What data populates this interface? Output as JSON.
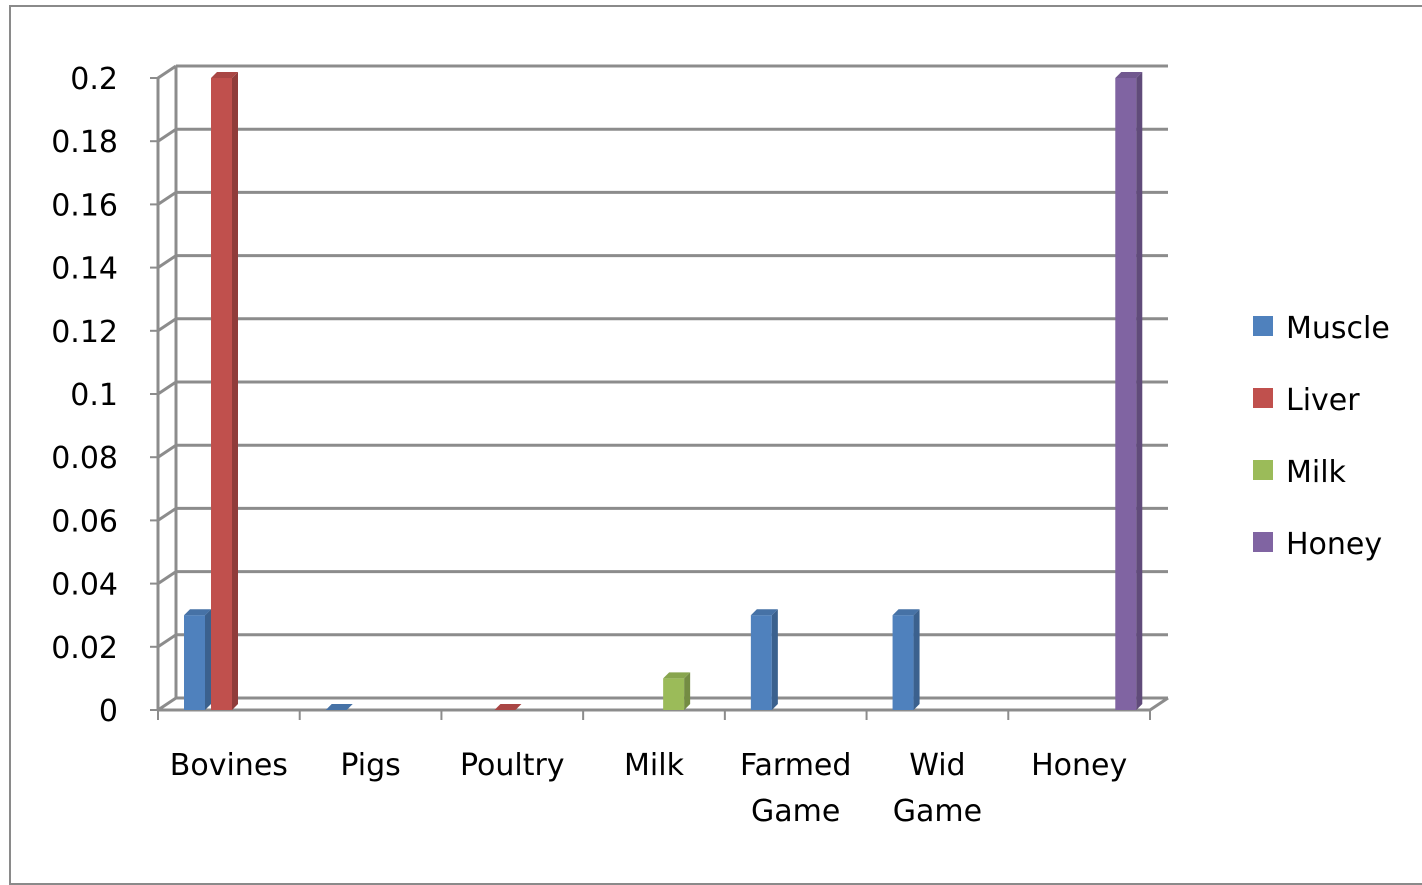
{
  "chart_data": {
    "type": "bar",
    "categories": [
      [
        "Bovines"
      ],
      [
        "Pigs"
      ],
      [
        "Poultry"
      ],
      [
        "Milk"
      ],
      [
        "Farmed",
        "Game"
      ],
      [
        "Wid",
        "Game"
      ],
      [
        "Honey"
      ]
    ],
    "series": [
      {
        "name": "Muscle",
        "color": "#4f81bd",
        "values": [
          0.03,
          0.0,
          null,
          null,
          0.03,
          0.03,
          null
        ]
      },
      {
        "name": "Liver",
        "color": "#c0504d",
        "values": [
          0.2,
          null,
          0.0,
          null,
          null,
          null,
          null
        ]
      },
      {
        "name": "Milk",
        "color": "#9bbb59",
        "values": [
          null,
          null,
          null,
          0.01,
          null,
          null,
          null
        ]
      },
      {
        "name": "Honey",
        "color": "#8064a2",
        "values": [
          null,
          null,
          null,
          null,
          null,
          null,
          0.2
        ]
      }
    ],
    "ylim": [
      0,
      0.2
    ],
    "yticks": [
      "0",
      "0.02",
      "0.04",
      "0.06",
      "0.08",
      "0.1",
      "0.12",
      "0.14",
      "0.16",
      "0.18",
      "0.2"
    ],
    "ytick_values": [
      0,
      0.02,
      0.04,
      0.06,
      0.08,
      0.1,
      0.12,
      0.14,
      0.16,
      0.18,
      0.2
    ],
    "grid": true,
    "legend_position": "right",
    "style": "3d-clustered-column"
  }
}
